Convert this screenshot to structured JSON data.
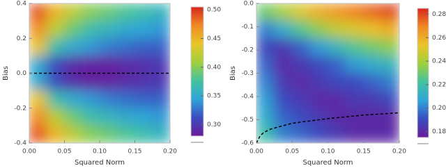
{
  "chart_data": [
    {
      "type": "heatmap",
      "xlabel": "Squared Norm",
      "ylabel": "Bias",
      "xlim": [
        0,
        0.2
      ],
      "ylim": [
        -0.4,
        0.4
      ],
      "xticks": [
        {
          "value": 0,
          "label": "0.00"
        },
        0.05,
        {
          "value": 0.1,
          "label": "0.10"
        },
        0.15,
        {
          "value": 0.2,
          "label": "0.20"
        }
      ],
      "yticks": [
        0.4,
        0.2,
        {
          "value": 0,
          "label": "0.0"
        },
        -0.2,
        -0.4
      ],
      "x": [
        0.0125,
        0.0375,
        0.0625,
        0.0875,
        0.1125,
        0.1375,
        0.1625,
        0.1875
      ],
      "y": [
        0.35,
        0.25,
        0.15,
        0.05,
        -0.05,
        -0.15,
        -0.25,
        -0.35
      ],
      "z": [
        [
          0.49,
          0.45,
          0.42,
          0.4,
          0.39,
          0.38,
          0.37,
          0.36
        ],
        [
          0.47,
          0.42,
          0.39,
          0.37,
          0.36,
          0.35,
          0.345,
          0.34
        ],
        [
          0.44,
          0.37,
          0.35,
          0.34,
          0.33,
          0.325,
          0.32,
          0.32
        ],
        [
          0.35,
          0.31,
          0.29,
          0.285,
          0.285,
          0.29,
          0.295,
          0.3
        ],
        [
          0.35,
          0.31,
          0.29,
          0.285,
          0.285,
          0.29,
          0.295,
          0.3
        ],
        [
          0.44,
          0.37,
          0.35,
          0.34,
          0.33,
          0.325,
          0.32,
          0.32
        ],
        [
          0.47,
          0.42,
          0.39,
          0.37,
          0.36,
          0.35,
          0.345,
          0.34
        ],
        [
          0.49,
          0.45,
          0.42,
          0.4,
          0.39,
          0.38,
          0.37,
          0.36
        ]
      ],
      "clim": [
        0.28,
        0.505
      ],
      "cticks": [
        {
          "value": 0.3,
          "label": "0.30"
        },
        0.35,
        {
          "value": 0.4,
          "label": "0.40"
        },
        0.45,
        {
          "value": 0.5,
          "label": "0.50"
        }
      ],
      "colormap": [
        "#6a1b9a",
        "#3b4cc0",
        "#2fa4d8",
        "#43c2a0",
        "#9fd03c",
        "#e8c52a",
        "#f08a24",
        "#d9261c"
      ],
      "lines": [
        {
          "x": [
            0,
            0.2
          ],
          "values": [
            0,
            0
          ],
          "color": "#000000"
        }
      ]
    },
    {
      "type": "heatmap",
      "xlabel": "Squared Norm",
      "ylabel": "Bias",
      "xlim": [
        0,
        0.2
      ],
      "ylim": [
        -0.6,
        0
      ],
      "xticks": [
        {
          "value": 0,
          "label": "0.00"
        },
        0.05,
        {
          "value": 0.1,
          "label": "0.10"
        },
        0.15,
        {
          "value": 0.2,
          "label": "0.20"
        }
      ],
      "yticks": [
        {
          "value": 0,
          "label": "0.0"
        },
        -0.1,
        -0.2,
        -0.3,
        -0.4,
        -0.5,
        -0.6
      ],
      "x": [
        0.0125,
        0.0375,
        0.0625,
        0.0875,
        0.1125,
        0.1375,
        0.1625,
        0.1875
      ],
      "y": [
        -0.0375,
        -0.1125,
        -0.1875,
        -0.2625,
        -0.3375,
        -0.4125,
        -0.4875,
        -0.5625
      ],
      "z": [
        [
          0.23,
          0.24,
          0.25,
          0.26,
          0.265,
          0.27,
          0.275,
          0.28
        ],
        [
          0.2,
          0.21,
          0.225,
          0.235,
          0.245,
          0.25,
          0.255,
          0.26
        ],
        [
          0.19,
          0.185,
          0.195,
          0.205,
          0.215,
          0.225,
          0.23,
          0.235
        ],
        [
          0.195,
          0.18,
          0.185,
          0.19,
          0.195,
          0.205,
          0.21,
          0.215
        ],
        [
          0.2,
          0.185,
          0.18,
          0.185,
          0.19,
          0.19,
          0.195,
          0.2
        ],
        [
          0.205,
          0.19,
          0.185,
          0.18,
          0.18,
          0.185,
          0.185,
          0.19
        ],
        [
          0.21,
          0.195,
          0.19,
          0.185,
          0.18,
          0.18,
          0.18,
          0.18
        ],
        [
          0.22,
          0.2,
          0.195,
          0.19,
          0.185,
          0.18,
          0.18,
          0.18
        ]
      ],
      "clim": [
        0.175,
        0.285
      ],
      "cticks": [
        0.18,
        {
          "value": 0.2,
          "label": "0.20"
        },
        0.22,
        0.24,
        0.26,
        0.28
      ],
      "colormap": [
        "#6a1b9a",
        "#3b4cc0",
        "#2fa4d8",
        "#43c2a0",
        "#9fd03c",
        "#e8c52a",
        "#f08a24",
        "#d9261c"
      ],
      "lines": [
        {
          "x": [
            0,
            0.005,
            0.01,
            0.02,
            0.05,
            0.1,
            0.15,
            0.2
          ],
          "values": [
            -0.6,
            -0.57,
            -0.555,
            -0.54,
            -0.515,
            -0.495,
            -0.48,
            -0.47
          ],
          "color": "#000000"
        }
      ]
    }
  ]
}
